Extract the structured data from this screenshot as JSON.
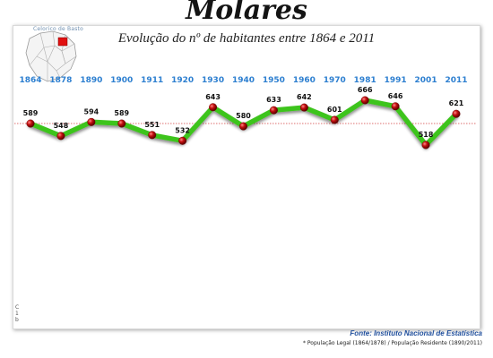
{
  "page": {
    "title": "Molares",
    "subtitle": "Evolução do nº de habitantes entre 1864 e 2011",
    "inset_label": "Celorico de Basto",
    "left_fragment": [
      "C",
      "1",
      "b"
    ],
    "source": "Fonte: Instituto Nacional de Estatística",
    "footnote": "* População Legal (1864/1878) /  População Residente (1890/2011)"
  },
  "colors": {
    "line": "#3ec41c",
    "marker": "#c40f0f",
    "year_labels": "#2d7fd0",
    "reference_line": "#d44040",
    "inset_highlight": "#e11010"
  },
  "chart_data": {
    "type": "line",
    "title": "Evolução do nº de habitantes entre 1864 e 2011",
    "categories": [
      "1864",
      "1878",
      "1890",
      "1900",
      "1911",
      "1920",
      "1930",
      "1940",
      "1950",
      "1960",
      "1970",
      "1981",
      "1991",
      "2001",
      "2011"
    ],
    "series": [
      {
        "values": [
          589,
          548,
          594,
          589,
          551,
          532,
          643,
          580,
          633,
          642,
          601,
          666,
          646,
          518,
          621
        ]
      }
    ],
    "reference_line": {
      "style": "dotted",
      "color": "#d44040",
      "value": 589
    },
    "xlabel": "",
    "ylabel": "",
    "grid": false,
    "legend": "none"
  }
}
